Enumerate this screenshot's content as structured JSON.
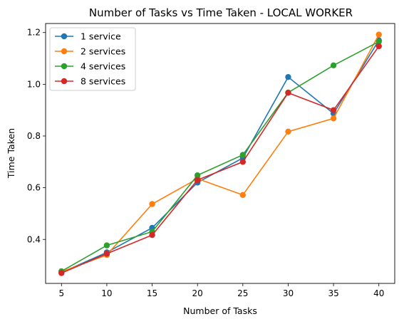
{
  "chart_data": {
    "type": "line",
    "title": "Number of Tasks vs Time Taken - LOCAL WORKER",
    "xlabel": "Number of Tasks",
    "ylabel": "Time Taken",
    "x": [
      5,
      10,
      15,
      20,
      25,
      30,
      35,
      40
    ],
    "xticks": [
      "5",
      "10",
      "15",
      "20",
      "25",
      "30",
      "35",
      "40"
    ],
    "yticks": [
      "0.4",
      "0.6",
      "0.8",
      "1.0",
      "1.2"
    ],
    "xlim": [
      3.25,
      41.75
    ],
    "ylim": [
      0.23,
      1.235
    ],
    "grid": false,
    "legend_position": "upper-left",
    "series": [
      {
        "name": "1 service",
        "color": "#1f77b4",
        "values": [
          0.272,
          0.35,
          0.445,
          0.62,
          0.715,
          1.028,
          0.887,
          1.17
        ]
      },
      {
        "name": "2 services",
        "color": "#ff7f0e",
        "values": [
          0.275,
          0.34,
          0.537,
          0.635,
          0.572,
          0.817,
          0.868,
          1.192
        ]
      },
      {
        "name": "4 services",
        "color": "#2ca02c",
        "values": [
          0.277,
          0.377,
          0.43,
          0.648,
          0.727,
          0.968,
          1.073,
          1.165
        ]
      },
      {
        "name": "8 services",
        "color": "#d62728",
        "values": [
          0.27,
          0.345,
          0.417,
          0.63,
          0.7,
          0.967,
          0.9,
          1.147
        ]
      }
    ]
  }
}
